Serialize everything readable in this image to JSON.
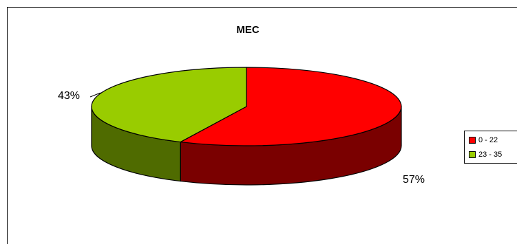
{
  "chart_data": {
    "type": "pie",
    "title": "MEC",
    "categories": [
      "0 - 22",
      "23 - 35"
    ],
    "values": [
      57,
      43
    ],
    "labels": [
      "57%",
      "43%"
    ],
    "colors": [
      "#FF0000",
      "#99CC00"
    ],
    "side_colors": [
      "#7A0000",
      "#4F6B00"
    ],
    "legend_position": "right",
    "style": "3d"
  }
}
